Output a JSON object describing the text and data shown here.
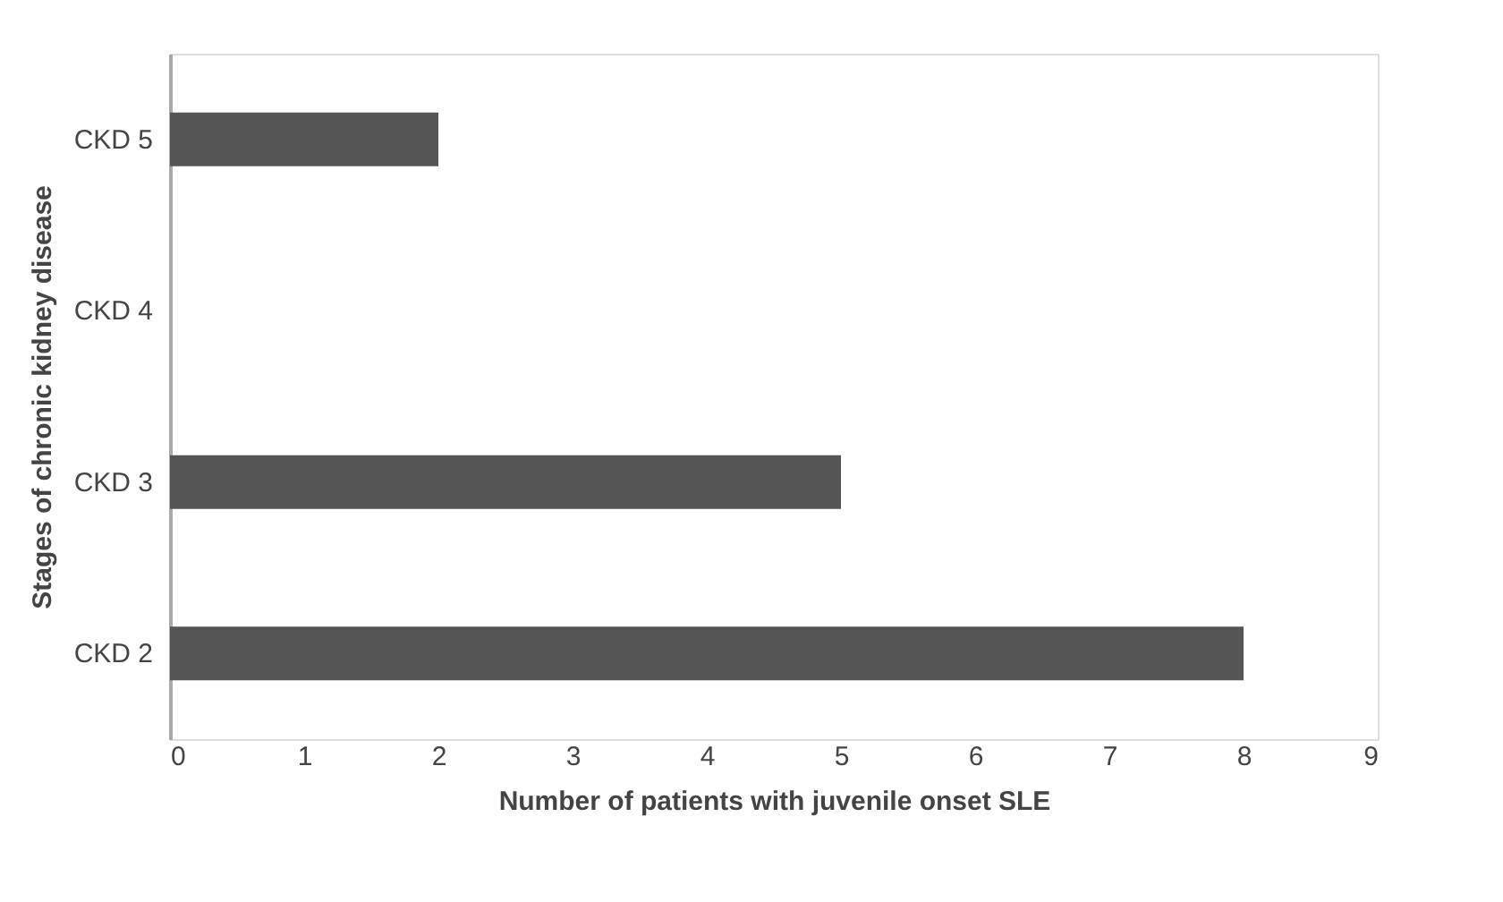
{
  "chart_data": {
    "type": "bar",
    "orientation": "horizontal",
    "categories": [
      "CKD 5",
      "CKD 4",
      "CKD 3",
      "CKD 2"
    ],
    "values": [
      2,
      0,
      5,
      8
    ],
    "color": "#555555",
    "xlabel": "Number of patients with juvenile onset SLE",
    "ylabel": "Stages of chronic kidney disease",
    "xlim": [
      0,
      9
    ],
    "xticks": [
      0,
      1,
      2,
      3,
      4,
      5,
      6,
      7,
      8,
      9
    ],
    "grid": false
  }
}
